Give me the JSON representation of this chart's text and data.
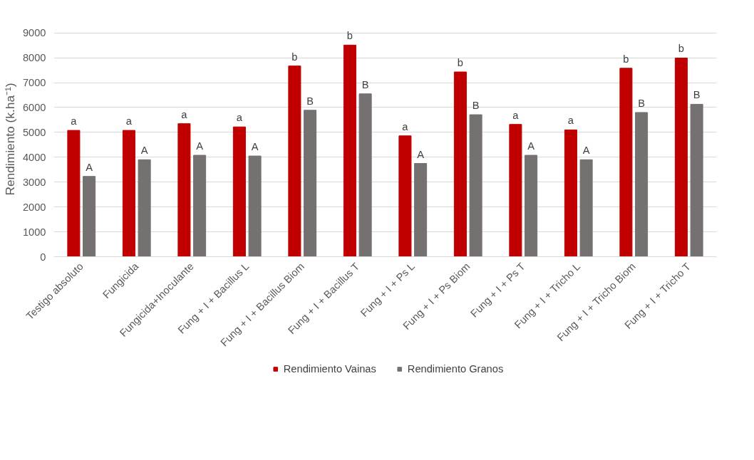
{
  "chart_data": {
    "type": "bar",
    "categories": [
      "Testigo absoluto",
      "Fungicida",
      "Fungicida+Inoculante",
      "Fung + I + Bacillus L",
      "Fung + I + Bacillus Biom",
      "Fung + I + Bacillus T",
      "Fung + I + Ps L",
      "Fung + I + Ps Biom",
      "Fung + I + Ps T",
      "Fung + I + Tricho L",
      "Fung + I + Tricho Biom",
      "Fung + I + Tricho T"
    ],
    "series": [
      {
        "name": "Rendimiento Vainas",
        "color": "#c00000",
        "values": [
          5080,
          5080,
          5350,
          5220,
          7670,
          8510,
          4860,
          7430,
          5320,
          5100,
          7580,
          7990
        ],
        "value_labels": [
          "a",
          "a",
          "a",
          "a",
          "b",
          "b",
          "a",
          "b",
          "a",
          "a",
          "b",
          "b"
        ]
      },
      {
        "name": "Rendimiento Granos",
        "color": "#767171",
        "values": [
          3230,
          3900,
          4080,
          4050,
          5890,
          6550,
          3750,
          5710,
          4080,
          3900,
          5800,
          6130
        ],
        "value_labels": [
          "A",
          "A",
          "A",
          "A",
          "B",
          "B",
          "A",
          "B",
          "A",
          "A",
          "B",
          "B"
        ]
      }
    ],
    "ylabel": "Rendimiento (k.ha⁻¹)",
    "ylim": [
      0,
      9000
    ],
    "yticks": [
      0,
      1000,
      2000,
      3000,
      4000,
      5000,
      6000,
      7000,
      8000,
      9000
    ],
    "grid": "y",
    "legend": "bottom"
  }
}
